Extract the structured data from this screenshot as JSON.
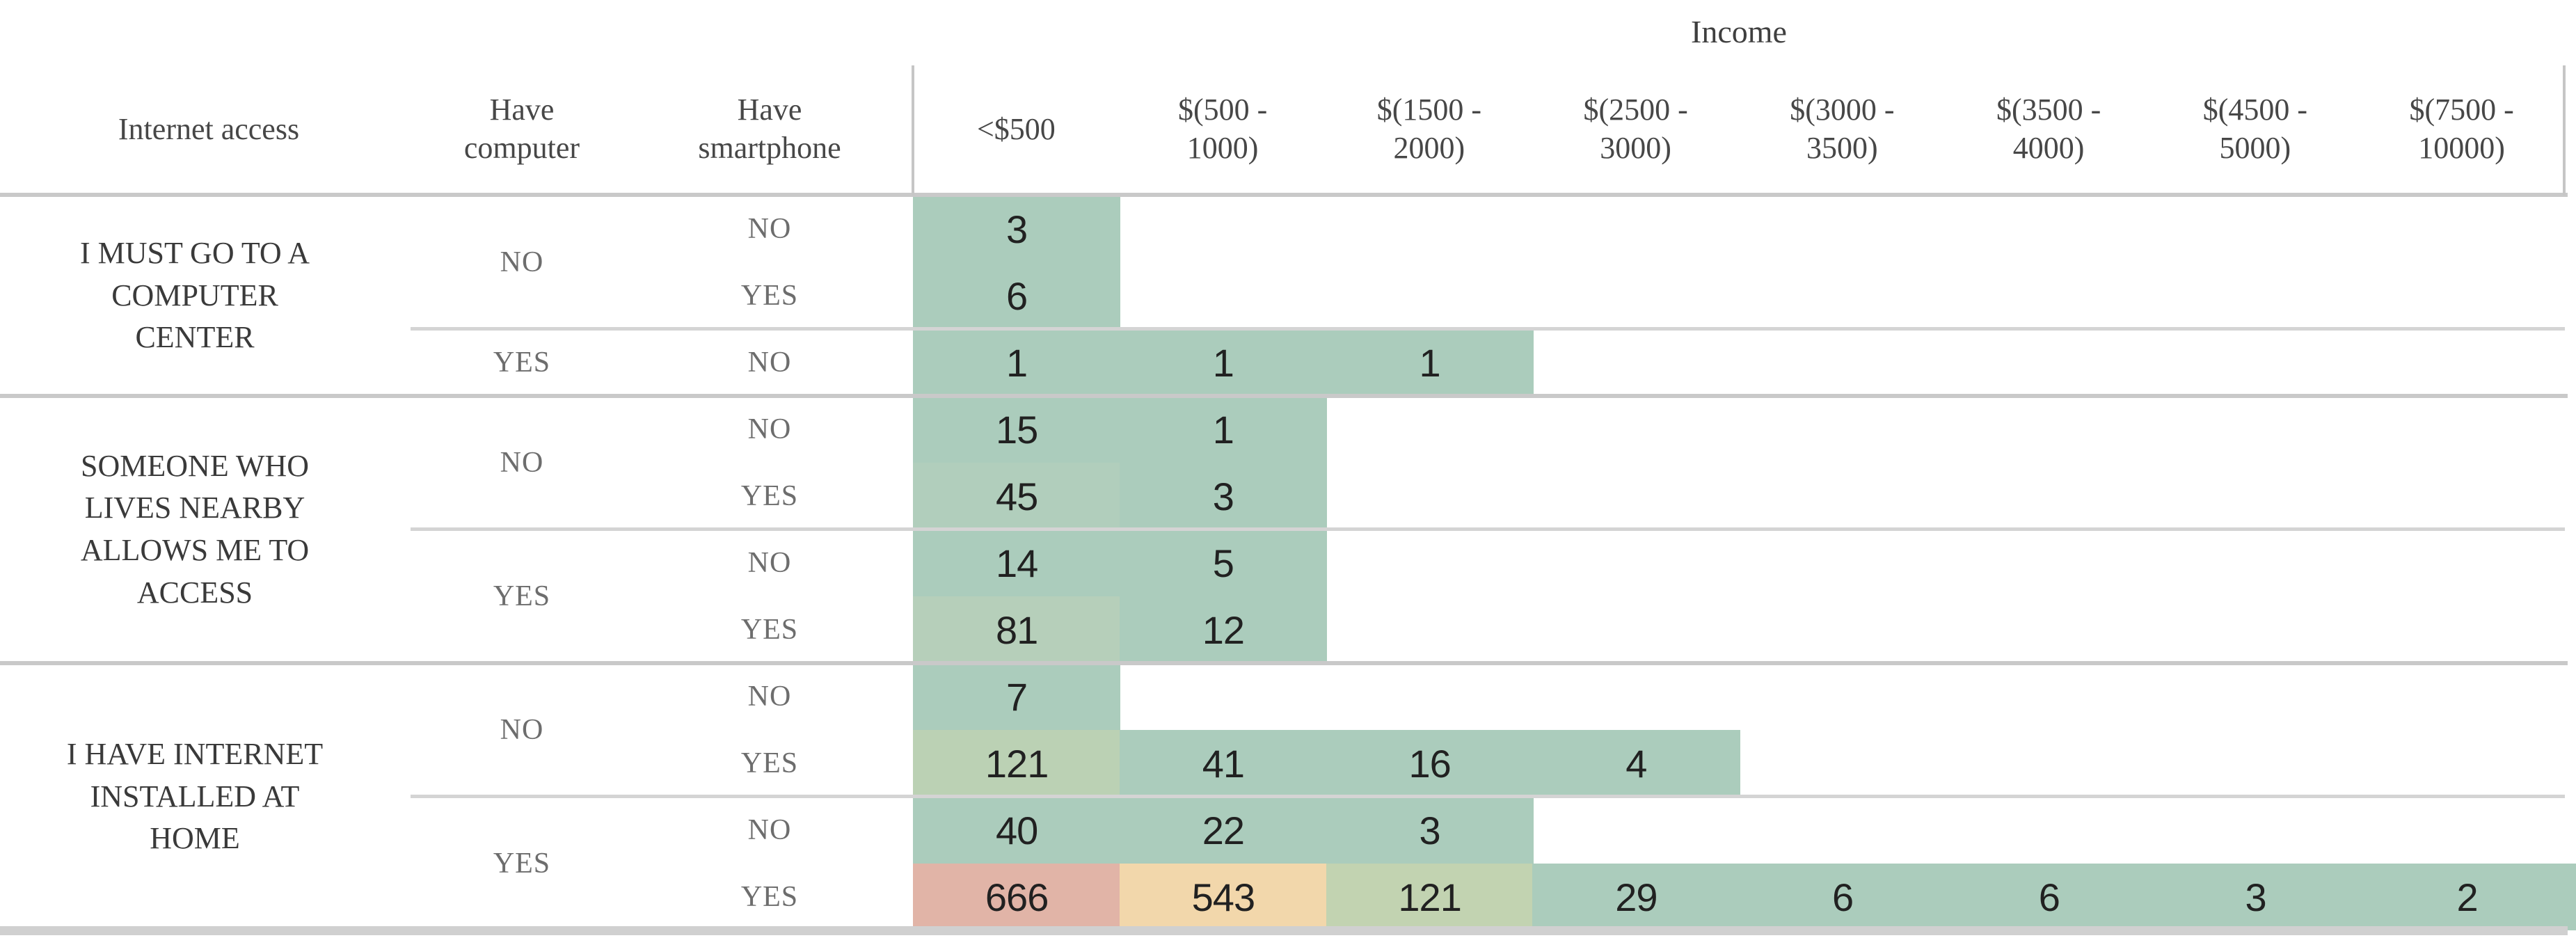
{
  "title": "Income",
  "columns": {
    "internet_access": "Internet access",
    "have_computer": "Have computer",
    "have_smartphone": "Have smartphone",
    "income_brackets": [
      "<$500",
      "$(500 - 1000)",
      "$(1500 - 2000)",
      "$(2500 - 3000)",
      "$(3000 - 3500)",
      "$(3500 - 4000)",
      "$(4500 - 5000)",
      "$(7500 - 10000)"
    ]
  },
  "colors": {
    "cell_green_base": "#abccbc",
    "cell_green_45": "#b1cebc",
    "cell_green_81": "#b6cfba",
    "cell_green_121": "#bbd1b4",
    "cell_sage_121": "#c2d3b1",
    "cell_wheat_543": "#f2d7ab",
    "cell_salmon_666": "#e1b4a7",
    "grid_strong": "#c9c9c9",
    "grid_light": "#d4d4d4",
    "bottom_border": "#d0d0d0"
  },
  "groups": [
    {
      "label": "I MUST GO TO A COMPUTER CENTER",
      "sections": [
        {
          "computer": "NO",
          "rows": [
            {
              "smartphone": "NO",
              "cells": [
                {
                  "value": "3",
                  "color": "#abccbc"
                }
              ]
            },
            {
              "smartphone": "YES",
              "cells": [
                {
                  "value": "6",
                  "color": "#abccbc"
                }
              ]
            }
          ]
        },
        {
          "computer": "YES",
          "rows": [
            {
              "smartphone": "NO",
              "cells": [
                {
                  "value": "1",
                  "color": "#abccbc"
                },
                {
                  "value": "1",
                  "color": "#abccbc"
                },
                {
                  "value": "1",
                  "color": "#abccbc"
                }
              ]
            }
          ]
        }
      ]
    },
    {
      "label": "SOMEONE WHO LIVES NEARBY ALLOWS ME TO ACCESS",
      "sections": [
        {
          "computer": "NO",
          "rows": [
            {
              "smartphone": "NO",
              "cells": [
                {
                  "value": "15",
                  "color": "#abccbc"
                },
                {
                  "value": "1",
                  "color": "#abccbc"
                }
              ]
            },
            {
              "smartphone": "YES",
              "cells": [
                {
                  "value": "45",
                  "color": "#b1cebc"
                },
                {
                  "value": "3",
                  "color": "#abccbc"
                }
              ]
            }
          ]
        },
        {
          "computer": "YES",
          "rows": [
            {
              "smartphone": "NO",
              "cells": [
                {
                  "value": "14",
                  "color": "#abccbc"
                },
                {
                  "value": "5",
                  "color": "#abccbc"
                }
              ]
            },
            {
              "smartphone": "YES",
              "cells": [
                {
                  "value": "81",
                  "color": "#b6cfba"
                },
                {
                  "value": "12",
                  "color": "#abccbc"
                }
              ]
            }
          ]
        }
      ]
    },
    {
      "label": "I HAVE INTERNET INSTALLED AT HOME",
      "sections": [
        {
          "computer": "NO",
          "rows": [
            {
              "smartphone": "NO",
              "cells": [
                {
                  "value": "7",
                  "color": "#abccbc"
                }
              ]
            },
            {
              "smartphone": "YES",
              "cells": [
                {
                  "value": "121",
                  "color": "#bbd1b4"
                },
                {
                  "value": "41",
                  "color": "#abccbc"
                },
                {
                  "value": "16",
                  "color": "#abccbc"
                },
                {
                  "value": "4",
                  "color": "#abccbc"
                }
              ]
            }
          ]
        },
        {
          "computer": "YES",
          "rows": [
            {
              "smartphone": "NO",
              "cells": [
                {
                  "value": "40",
                  "color": "#abccbc"
                },
                {
                  "value": "22",
                  "color": "#abccbc"
                },
                {
                  "value": "3",
                  "color": "#abccbc"
                }
              ]
            },
            {
              "smartphone": "YES",
              "cells": [
                {
                  "value": "666",
                  "color": "#e1b4a7"
                },
                {
                  "value": "543",
                  "color": "#f2d7ab"
                },
                {
                  "value": "121",
                  "color": "#c2d3b1"
                },
                {
                  "value": "29",
                  "color": "#abccbc"
                },
                {
                  "value": "6",
                  "color": "#abccbc"
                },
                {
                  "value": "6",
                  "color": "#abccbc"
                },
                {
                  "value": "3",
                  "color": "#abccbc"
                },
                {
                  "value": "2",
                  "color": "#abccbc"
                }
              ]
            }
          ]
        }
      ]
    }
  ],
  "chart_data": {
    "type": "heatmap",
    "title": "Income",
    "x_labels": [
      "<$500",
      "$(500 - 1000)",
      "$(1500 - 2000)",
      "$(2500 - 3000)",
      "$(3000 - 3500)",
      "$(3500 - 4000)",
      "$(4500 - 5000)",
      "$(7500 - 10000)"
    ],
    "row_dimensions": [
      "Internet access",
      "Have computer",
      "Have smartphone"
    ],
    "rows": [
      {
        "internet_access": "I MUST GO TO A COMPUTER CENTER",
        "have_computer": "NO",
        "have_smartphone": "NO",
        "values": [
          3,
          null,
          null,
          null,
          null,
          null,
          null,
          null
        ]
      },
      {
        "internet_access": "I MUST GO TO A COMPUTER CENTER",
        "have_computer": "NO",
        "have_smartphone": "YES",
        "values": [
          6,
          null,
          null,
          null,
          null,
          null,
          null,
          null
        ]
      },
      {
        "internet_access": "I MUST GO TO A COMPUTER CENTER",
        "have_computer": "YES",
        "have_smartphone": "NO",
        "values": [
          1,
          1,
          1,
          null,
          null,
          null,
          null,
          null
        ]
      },
      {
        "internet_access": "SOMEONE WHO LIVES NEARBY ALLOWS ME TO ACCESS",
        "have_computer": "NO",
        "have_smartphone": "NO",
        "values": [
          15,
          1,
          null,
          null,
          null,
          null,
          null,
          null
        ]
      },
      {
        "internet_access": "SOMEONE WHO LIVES NEARBY ALLOWS ME TO ACCESS",
        "have_computer": "NO",
        "have_smartphone": "YES",
        "values": [
          45,
          3,
          null,
          null,
          null,
          null,
          null,
          null
        ]
      },
      {
        "internet_access": "SOMEONE WHO LIVES NEARBY ALLOWS ME TO ACCESS",
        "have_computer": "YES",
        "have_smartphone": "NO",
        "values": [
          14,
          5,
          null,
          null,
          null,
          null,
          null,
          null
        ]
      },
      {
        "internet_access": "SOMEONE WHO LIVES NEARBY ALLOWS ME TO ACCESS",
        "have_computer": "YES",
        "have_smartphone": "YES",
        "values": [
          81,
          12,
          null,
          null,
          null,
          null,
          null,
          null
        ]
      },
      {
        "internet_access": "I HAVE INTERNET INSTALLED AT HOME",
        "have_computer": "NO",
        "have_smartphone": "NO",
        "values": [
          7,
          null,
          null,
          null,
          null,
          null,
          null,
          null
        ]
      },
      {
        "internet_access": "I HAVE INTERNET INSTALLED AT HOME",
        "have_computer": "NO",
        "have_smartphone": "YES",
        "values": [
          121,
          41,
          16,
          4,
          null,
          null,
          null,
          null
        ]
      },
      {
        "internet_access": "I HAVE INTERNET INSTALLED AT HOME",
        "have_computer": "YES",
        "have_smartphone": "NO",
        "values": [
          40,
          22,
          3,
          null,
          null,
          null,
          null,
          null
        ]
      },
      {
        "internet_access": "I HAVE INTERNET INSTALLED AT HOME",
        "have_computer": "YES",
        "have_smartphone": "YES",
        "values": [
          666,
          543,
          121,
          29,
          6,
          6,
          3,
          2
        ]
      }
    ],
    "legend_position": "none",
    "grid": "partial"
  }
}
